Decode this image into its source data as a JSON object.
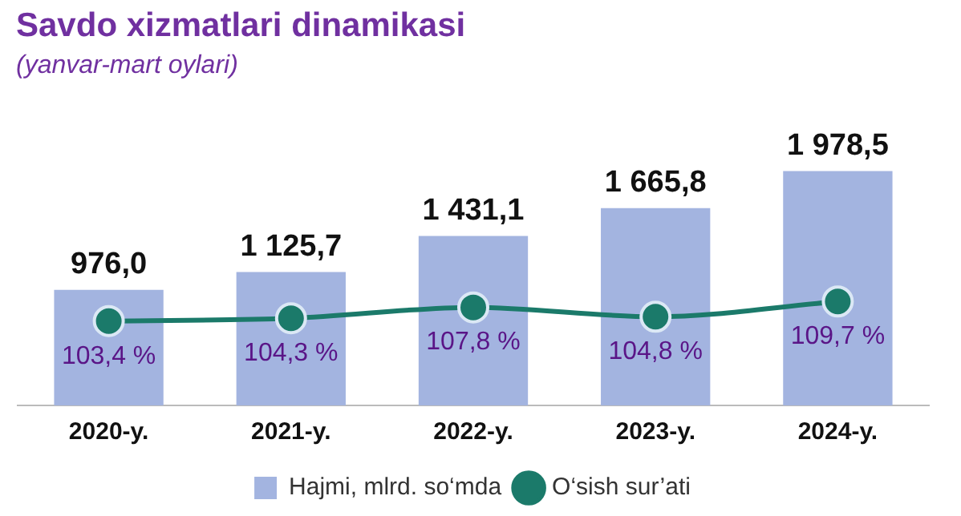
{
  "chart_data": {
    "type": "bar",
    "title": "Savdo xizmatlari dinamikasi",
    "subtitle": "(yanvar-mart oylari)",
    "categories": [
      "2020-y.",
      "2021-y.",
      "2022-y.",
      "2023-y.",
      "2024-y."
    ],
    "series": [
      {
        "name": "Hajmi, mlrd. so‘mda",
        "color": "#a3b4e0",
        "values": [
          976.0,
          1125.7,
          1431.1,
          1665.8,
          1978.5
        ],
        "value_labels": [
          "976,0",
          "1 125,7",
          "1 431,1",
          "1 665,8",
          "1 978,5"
        ]
      },
      {
        "name": "O‘sish sur’ati",
        "type": "line",
        "axis": "y2",
        "color": "#1b7a6a",
        "values": [
          103.4,
          104.3,
          107.8,
          104.8,
          109.7
        ],
        "value_labels": [
          "103,4 %",
          "104,3 %",
          "107,8 %",
          "104,8 %",
          "109,7 %"
        ]
      }
    ],
    "marker": "circle",
    "legend": "bottom",
    "grid": false
  }
}
